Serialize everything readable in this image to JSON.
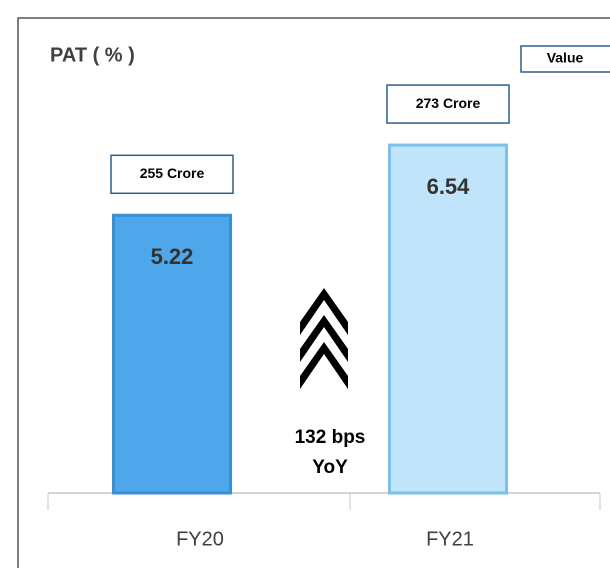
{
  "chart_data": {
    "type": "bar",
    "title": "PAT ( % )",
    "categories": [
      "FY20",
      "FY21"
    ],
    "series": [
      {
        "name": "Value",
        "colors": [
          "#4ea7ea",
          "#c0e5fb"
        ],
        "values": [
          5.22,
          6.54
        ]
      }
    ],
    "bar_annotations": [
      "255 Crore",
      "273 Crore"
    ],
    "annotation": [
      "132 bps",
      "YoY"
    ],
    "ylim": [
      0,
      7.5
    ]
  }
}
